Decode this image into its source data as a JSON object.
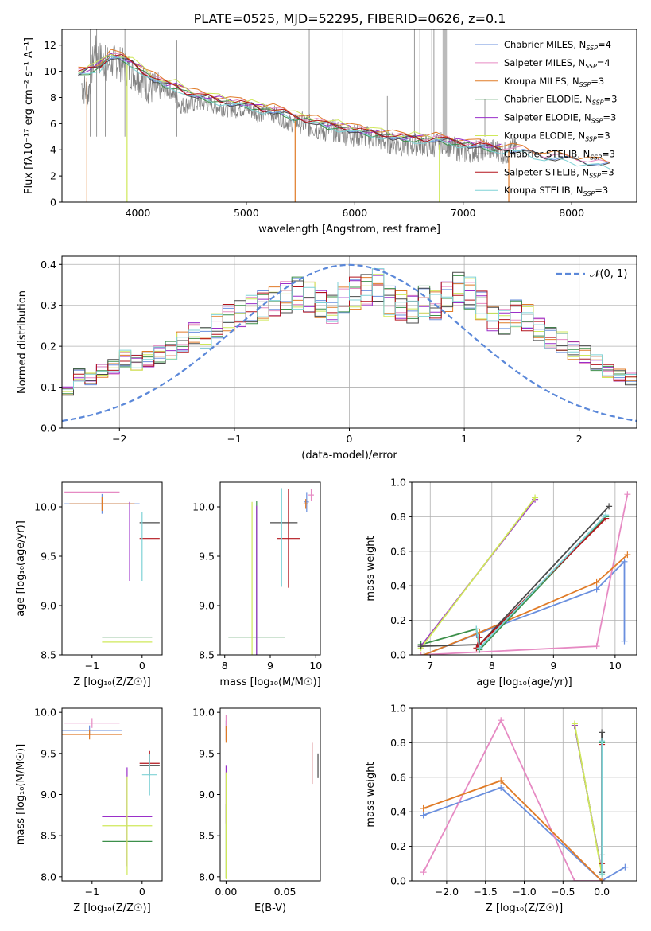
{
  "figure_title": "PLATE=0525, MJD=52295, FIBERID=0626, z=0.1",
  "legend_entries": [
    {
      "label": "Chabrier MILES, N",
      "sub": "SSP",
      "suffix": "=4",
      "color": "#6a8fde"
    },
    {
      "label": "Salpeter MILES, N",
      "sub": "SSP",
      "suffix": "=4",
      "color": "#e68ac3"
    },
    {
      "label": "Kroupa MILES, N",
      "sub": "SSP",
      "suffix": "=3",
      "color": "#e07b27"
    },
    {
      "label": "Chabrier ELODIE, N",
      "sub": "SSP",
      "suffix": "=3",
      "color": "#3c8f4a"
    },
    {
      "label": "Salpeter ELODIE, N",
      "sub": "SSP",
      "suffix": "=3",
      "color": "#9a2fc9"
    },
    {
      "label": "Kroupa ELODIE, N",
      "sub": "SSP",
      "suffix": "=3",
      "color": "#cfe85a"
    },
    {
      "label": "Chabrier STELIB, N",
      "sub": "SSP",
      "suffix": "=3",
      "color": "#4a4a4a"
    },
    {
      "label": "Salpeter STELIB, N",
      "sub": "SSP",
      "suffix": "=3",
      "color": "#b3141c"
    },
    {
      "label": "Kroupa STELIB, N",
      "sub": "SSP",
      "suffix": "=3",
      "color": "#7fd2d6"
    }
  ],
  "hist_legend": "𝒩(0, 1)",
  "chart_data": [
    {
      "id": "spectrum",
      "type": "line",
      "xlabel": "wavelength [Angstrom, rest frame]",
      "ylabel": "Flux [fλ10⁻¹⁷ erg cm⁻² s⁻¹ A⁻¹]",
      "xlim": [
        3300,
        8600
      ],
      "ylim": [
        0,
        13.2
      ],
      "xticks": [
        4000,
        5000,
        6000,
        7000,
        8000
      ],
      "yticks": [
        0,
        2,
        4,
        6,
        8,
        10,
        12
      ],
      "data_color": "#808080",
      "data_x": [
        3480,
        3540,
        3600,
        3700,
        3800,
        3900,
        4000,
        4100,
        4200,
        4300,
        4400,
        4500,
        4600,
        4700,
        4800,
        4900,
        5000,
        5100,
        5200,
        5300,
        5400,
        5500,
        5600,
        5700,
        5800,
        5900,
        6000,
        6100,
        6200,
        6300,
        6400,
        6500,
        6600,
        6700,
        6800,
        6900,
        7000,
        7100,
        7200,
        7300,
        7400,
        7500
      ],
      "data_y": [
        9.0,
        8.2,
        11.5,
        10.5,
        10.8,
        10.2,
        9.6,
        8.8,
        8.5,
        8.6,
        7.4,
        7.5,
        7.6,
        7.4,
        7.2,
        7.1,
        7.2,
        6.8,
        6.9,
        6.6,
        6.0,
        6.1,
        5.8,
        5.4,
        5.5,
        5.2,
        5.1,
        5.0,
        4.9,
        4.6,
        4.4,
        4.3,
        4.5,
        4.2,
        4.6,
        4.2,
        3.8,
        3.9,
        4.1,
        4.0,
        3.7,
        4.3
      ],
      "model_x": [
        3450,
        3550,
        3650,
        3750,
        3850,
        3950,
        4050,
        4150,
        4250,
        4350,
        4450,
        4550,
        4650,
        4750,
        4850,
        4950,
        5050,
        5150,
        5250,
        5350,
        5450,
        5550,
        5650,
        5750,
        5850,
        5950,
        6050,
        6150,
        6250,
        6350,
        6450,
        6550,
        6650,
        6750,
        6850,
        6950,
        7050,
        7150,
        7250,
        7350,
        7450,
        7550,
        7650,
        7750,
        7850,
        7950,
        8050,
        8150,
        8250,
        8350
      ],
      "model_y": [
        9.8,
        10.1,
        10.4,
        11.2,
        11.0,
        10.6,
        10.0,
        9.4,
        9.0,
        8.9,
        8.4,
        8.1,
        8.0,
        7.8,
        7.6,
        7.5,
        7.4,
        7.1,
        7.0,
        6.8,
        6.5,
        6.3,
        6.1,
        5.9,
        5.8,
        5.6,
        5.4,
        5.3,
        5.2,
        5.0,
        4.9,
        4.9,
        4.8,
        4.8,
        4.7,
        4.6,
        4.4,
        4.3,
        4.2,
        4.1,
        4.0,
        3.9,
        3.7,
        3.5,
        3.4,
        3.3,
        3.2,
        3.1,
        2.9,
        2.8
      ],
      "series_shift": [
        0.0,
        0.15,
        0.3,
        -0.1,
        0.1,
        0.25,
        -0.05,
        0.05,
        -0.2
      ],
      "series_end": [
        8350,
        8350,
        8350,
        7400,
        7400,
        6850,
        8350,
        7400,
        8350
      ],
      "drop_lines": [
        {
          "x": 3530,
          "ymin": 0,
          "ymax": 9.5,
          "series": 2
        },
        {
          "x": 3900,
          "ymin": 0,
          "ymax": 10.5,
          "series": 5
        },
        {
          "x": 5450,
          "ymin": 0,
          "ymax": 6.2,
          "series": 2
        },
        {
          "x": 6780,
          "ymin": 0,
          "ymax": 4.4,
          "series": 5
        },
        {
          "x": 7420,
          "ymin": 0,
          "ymax": 4.0,
          "series": 2
        }
      ],
      "spikes": [
        {
          "x": 3560,
          "y": 13.2
        },
        {
          "x": 3620,
          "y": 13.2
        },
        {
          "x": 3700,
          "y": 12.0
        },
        {
          "x": 3880,
          "y": 13.2
        },
        {
          "x": 4360,
          "y": 12.4
        },
        {
          "x": 5580,
          "y": 13.2
        },
        {
          "x": 5890,
          "y": 13.2
        },
        {
          "x": 6300,
          "y": 8.1
        },
        {
          "x": 6550,
          "y": 13.2
        },
        {
          "x": 6600,
          "y": 13.2
        },
        {
          "x": 6710,
          "y": 13.2
        },
        {
          "x": 6730,
          "y": 13.2
        },
        {
          "x": 7200,
          "y": 7.9
        },
        {
          "x": 7320,
          "y": 7.4
        }
      ],
      "band": {
        "x0": 6810,
        "x1": 6850,
        "color": "#bbbbbb"
      }
    },
    {
      "id": "histogram",
      "type": "line",
      "xlabel": "(data-model)/error",
      "ylabel": "Normed distribution",
      "xlim": [
        -2.5,
        2.5
      ],
      "ylim": [
        0,
        0.42
      ],
      "xticks": [
        -2,
        -1,
        0,
        1,
        2
      ],
      "yticks": [
        0.0,
        0.1,
        0.2,
        0.3,
        0.4
      ],
      "bin_edges_start": -2.5,
      "bin_width": 0.1,
      "base_values": [
        0.09,
        0.13,
        0.12,
        0.14,
        0.15,
        0.17,
        0.16,
        0.17,
        0.18,
        0.19,
        0.21,
        0.23,
        0.22,
        0.25,
        0.27,
        0.28,
        0.29,
        0.3,
        0.31,
        0.32,
        0.33,
        0.32,
        0.3,
        0.29,
        0.32,
        0.33,
        0.34,
        0.35,
        0.31,
        0.3,
        0.29,
        0.31,
        0.3,
        0.32,
        0.34,
        0.33,
        0.3,
        0.27,
        0.26,
        0.28,
        0.27,
        0.24,
        0.22,
        0.21,
        0.19,
        0.18,
        0.16,
        0.14,
        0.13,
        0.12
      ],
      "normal_color": "#5b88d9"
    },
    {
      "id": "age-vs-Z",
      "type": "scatter",
      "xlabel": "Z [log₁₀(Z/Z☉)]",
      "ylabel": "age  [log₁₀(age/yr)]",
      "xlim": [
        -1.6,
        0.4
      ],
      "ylim": [
        8.5,
        10.25
      ],
      "xticks": [
        -1,
        0
      ],
      "yticks": [
        8.5,
        9.0,
        9.5,
        10.0
      ],
      "points": [
        {
          "x": -0.8,
          "y": 10.03,
          "xerr": 0.75,
          "yerr": 0.1,
          "series": 0
        },
        {
          "x": -1.0,
          "y": 10.15,
          "xerr": 0.55,
          "yerr": 0.0,
          "series": 1
        },
        {
          "x": -0.8,
          "y": 10.03,
          "xerr": 0.65,
          "yerr": 0.07,
          "series": 2
        },
        {
          "x": -0.3,
          "y": 8.68,
          "xerr": 0.5,
          "yerr": 0.0,
          "series": 3
        },
        {
          "x": -0.25,
          "y": 9.65,
          "xerr": 0.0,
          "yerr": 0.4,
          "series": 4
        },
        {
          "x": -0.3,
          "y": 8.63,
          "xerr": 0.5,
          "yerr": 0.0,
          "series": 5
        },
        {
          "x": 0.15,
          "y": 9.84,
          "xerr": 0.2,
          "yerr": 0.0,
          "series": 6
        },
        {
          "x": 0.15,
          "y": 9.68,
          "xerr": 0.2,
          "yerr": 0.0,
          "series": 7
        },
        {
          "x": 0.0,
          "y": 9.6,
          "xerr": 0.0,
          "yerr": 0.35,
          "series": 8
        }
      ]
    },
    {
      "id": "age-vs-mass",
      "type": "scatter",
      "xlabel": "mass [log₁₀(M/M☉)]",
      "ylabel": "",
      "xlim": [
        7.9,
        10.1
      ],
      "ylim": [
        8.5,
        10.25
      ],
      "xticks": [
        8,
        9,
        10
      ],
      "yticks": [
        8.5,
        9.0,
        9.5,
        10.0
      ],
      "points": [
        {
          "x": 9.8,
          "y": 10.05,
          "xerr": 0.05,
          "yerr": 0.1,
          "series": 0
        },
        {
          "x": 9.9,
          "y": 10.12,
          "xerr": 0.06,
          "yerr": 0.06,
          "series": 1
        },
        {
          "x": 9.78,
          "y": 10.03,
          "xerr": 0.05,
          "yerr": 0.05,
          "series": 2
        },
        {
          "x": 8.7,
          "y": 8.68,
          "xerr": 0.62,
          "yerr": 1.38,
          "series": 3
        },
        {
          "x": 8.7,
          "y": 8.63,
          "xerr": 0.0,
          "yerr": 1.38,
          "series": 4
        },
        {
          "x": 8.6,
          "y": 8.63,
          "xerr": 0.0,
          "yerr": 1.42,
          "series": 5
        },
        {
          "x": 9.3,
          "y": 9.84,
          "xerr": 0.3,
          "yerr": 0.0,
          "series": 6
        },
        {
          "x": 9.4,
          "y": 9.68,
          "xerr": 0.25,
          "yerr": 0.5,
          "series": 7
        },
        {
          "x": 9.25,
          "y": 9.69,
          "xerr": 0.0,
          "yerr": 0.5,
          "series": 8
        }
      ]
    },
    {
      "id": "weight-vs-age",
      "type": "line",
      "xlabel": "age  [log₁₀(age/yr)]",
      "ylabel": "mass weight",
      "xlim": [
        6.7,
        10.35
      ],
      "ylim": [
        0,
        1.0
      ],
      "xticks": [
        7,
        8,
        9,
        10
      ],
      "yticks": [
        0.0,
        0.2,
        0.4,
        0.6,
        0.8,
        1.0
      ],
      "series": [
        {
          "x": [
            6.9,
            7.75,
            9.7,
            10.15,
            10.15
          ],
          "y": [
            0.0,
            0.12,
            0.38,
            0.54,
            0.08
          ]
        },
        {
          "x": [
            6.85,
            9.7,
            10.2
          ],
          "y": [
            0.0,
            0.05,
            0.93
          ]
        },
        {
          "x": [
            6.9,
            7.8,
            9.7,
            10.2
          ],
          "y": [
            0.0,
            0.13,
            0.42,
            0.58
          ]
        },
        {
          "x": [
            6.85,
            7.75,
            7.8,
            9.85
          ],
          "y": [
            0.06,
            0.15,
            0.03,
            0.8
          ]
        },
        {
          "x": [
            6.85,
            8.7
          ],
          "y": [
            0.05,
            0.9
          ]
        },
        {
          "x": [
            6.85,
            8.7
          ],
          "y": [
            0.04,
            0.91
          ]
        },
        {
          "x": [
            6.85,
            7.8,
            9.9
          ],
          "y": [
            0.05,
            0.06,
            0.86
          ]
        },
        {
          "x": [
            7.8,
            7.75,
            9.85
          ],
          "y": [
            0.1,
            0.04,
            0.79
          ]
        },
        {
          "x": [
            7.75,
            7.8,
            9.85
          ],
          "y": [
            0.15,
            0.04,
            0.81
          ]
        }
      ]
    },
    {
      "id": "mass-vs-Z",
      "type": "scatter",
      "xlabel": "Z [log₁₀(Z/Z☉)]",
      "ylabel": "mass [log₁₀(M/M☉)]",
      "xlim": [
        -1.6,
        0.4
      ],
      "ylim": [
        7.95,
        10.05
      ],
      "xticks": [
        -1,
        0
      ],
      "yticks": [
        8.0,
        8.5,
        9.0,
        9.5,
        10.0
      ],
      "points": [
        {
          "x": -1.05,
          "y": 9.78,
          "xerr": 0.65,
          "yerr": 0.06,
          "series": 0
        },
        {
          "x": -1.0,
          "y": 9.87,
          "xerr": 0.55,
          "yerr": 0.06,
          "series": 1
        },
        {
          "x": -1.05,
          "y": 9.73,
          "xerr": 0.65,
          "yerr": 0.06,
          "series": 2
        },
        {
          "x": -0.3,
          "y": 8.43,
          "xerr": 0.5,
          "yerr": 0.0,
          "series": 3
        },
        {
          "x": -0.3,
          "y": 8.73,
          "xerr": 0.5,
          "yerr": 0.6,
          "series": 4
        },
        {
          "x": -0.3,
          "y": 8.62,
          "xerr": 0.5,
          "yerr": 0.6,
          "series": 5
        },
        {
          "x": 0.15,
          "y": 9.35,
          "xerr": 0.2,
          "yerr": 0.0,
          "series": 6
        },
        {
          "x": 0.15,
          "y": 9.38,
          "xerr": 0.2,
          "yerr": 0.15,
          "series": 7
        },
        {
          "x": 0.15,
          "y": 9.24,
          "xerr": 0.15,
          "yerr": 0.25,
          "series": 8
        }
      ]
    },
    {
      "id": "mass-vs-EBV",
      "type": "scatter",
      "xlabel": "E(B-V)",
      "ylabel": "",
      "xlim": [
        -0.005,
        0.08
      ],
      "ylim": [
        7.95,
        10.05
      ],
      "xticks": [
        0.0,
        0.05
      ],
      "yticks": [
        8.0,
        8.5,
        9.0,
        9.5,
        10.0
      ],
      "points": [
        {
          "x": 0.0,
          "y": 9.78,
          "xerr": 0,
          "yerr": 0.12,
          "series": 0
        },
        {
          "x": 0.0,
          "y": 9.87,
          "xerr": 0,
          "yerr": 0.1,
          "series": 1
        },
        {
          "x": 0.0,
          "y": 9.73,
          "xerr": 0,
          "yerr": 0.1,
          "series": 2
        },
        {
          "x": 0.0,
          "y": 8.43,
          "xerr": 0,
          "yerr": 0.45,
          "series": 3
        },
        {
          "x": 0.0,
          "y": 9.0,
          "xerr": 0,
          "yerr": 0.35,
          "series": 4
        },
        {
          "x": 0.0,
          "y": 8.62,
          "xerr": 0,
          "yerr": 0.65,
          "series": 5
        },
        {
          "x": 0.078,
          "y": 9.35,
          "xerr": 0,
          "yerr": 0.15,
          "series": 6
        },
        {
          "x": 0.073,
          "y": 9.38,
          "xerr": 0,
          "yerr": 0.25,
          "series": 7
        },
        {
          "x": 0.08,
          "y": 9.24,
          "xerr": 0,
          "yerr": 0.3,
          "series": 8
        }
      ]
    },
    {
      "id": "weight-vs-Z",
      "type": "line",
      "xlabel": "Z [log₁₀(Z/Z☉)]",
      "ylabel": "mass weight",
      "xlim": [
        -2.45,
        0.45
      ],
      "ylim": [
        0,
        1.0
      ],
      "xticks": [
        -2.0,
        -1.5,
        -1.0,
        -0.5,
        0.0
      ],
      "yticks": [
        0.0,
        0.2,
        0.4,
        0.6,
        0.8,
        1.0
      ],
      "series": [
        {
          "x": [
            -2.3,
            -1.3,
            0.0,
            0.3
          ],
          "y": [
            0.38,
            0.54,
            0.0,
            0.08
          ]
        },
        {
          "x": [
            -2.3,
            -1.3,
            -0.35,
            0.0
          ],
          "y": [
            0.05,
            0.93,
            0.0,
            0.0
          ]
        },
        {
          "x": [
            -2.3,
            -1.3,
            0.0
          ],
          "y": [
            0.42,
            0.58,
            0.0
          ]
        },
        {
          "x": [
            -0.35,
            0.0,
            0.0
          ],
          "y": [
            0.9,
            0.05,
            0.8
          ]
        },
        {
          "x": [
            -0.35,
            0.0
          ],
          "y": [
            0.9,
            0.05
          ]
        },
        {
          "x": [
            -0.35,
            0.0
          ],
          "y": [
            0.91,
            0.04
          ]
        },
        {
          "x": [
            0.0,
            0.0,
            0.0
          ],
          "y": [
            0.86,
            0.05,
            0.15
          ]
        },
        {
          "x": [
            0.0,
            0.0
          ],
          "y": [
            0.79,
            0.1
          ]
        },
        {
          "x": [
            0.0,
            0.0
          ],
          "y": [
            0.81,
            0.04
          ]
        }
      ]
    }
  ]
}
